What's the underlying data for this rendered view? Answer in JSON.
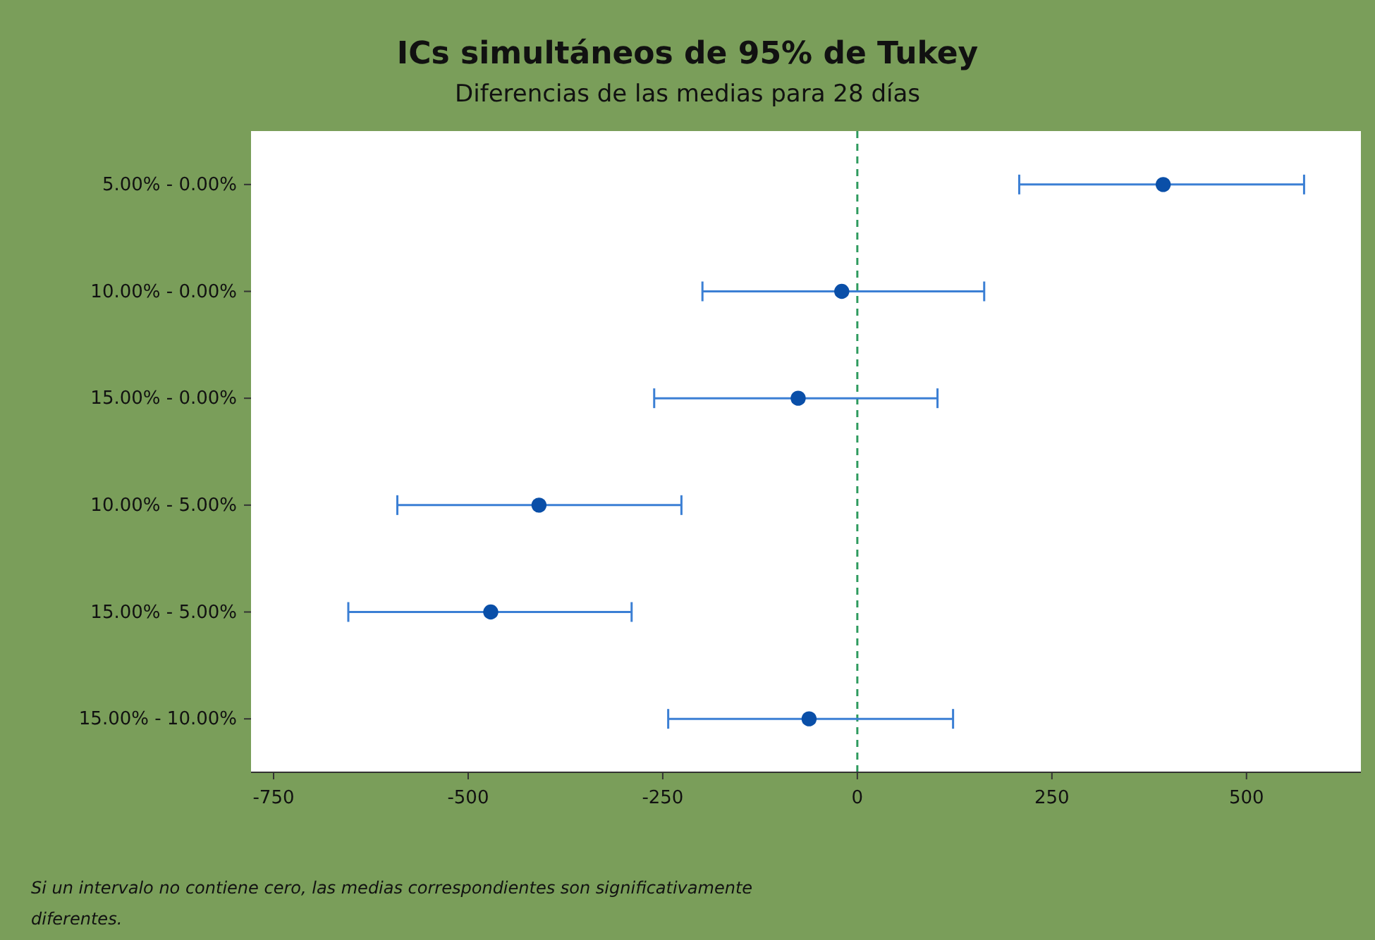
{
  "chart_data": {
    "type": "scatter",
    "orientation": "horizontal",
    "title": "ICs simultáneos de 95% de Tukey",
    "subtitle": "Diferencias de las medias para 28 días",
    "categories": [
      "5.00% - 0.00%",
      "10.00% - 0.00%",
      "15.00% - 0.00%",
      "10.00% - 5.00%",
      "15.00% - 5.00%",
      "15.00% - 10.00%"
    ],
    "series": [
      {
        "color": "#0a4fa8",
        "values": [
          393,
          -20,
          -76,
          -409,
          -471,
          -62
        ],
        "errors": [
          [
            208,
            574
          ],
          [
            -199,
            163
          ],
          [
            -261,
            103
          ],
          [
            -591,
            -226
          ],
          [
            -654,
            -290
          ],
          [
            -243,
            123
          ]
        ]
      }
    ],
    "xlim": [
      -779,
      647
    ],
    "xticks": [
      -750,
      -500,
      -250,
      0,
      250,
      500
    ],
    "ref_lines": [
      {
        "axis": "x",
        "value": 0,
        "color": "#2e9a5e",
        "line_style": "dashed"
      }
    ],
    "marker": "circle",
    "grid": false,
    "annotations": [
      "Si un intervalo no contiene cero, las medias correspondientes son significativamente diferentes."
    ]
  }
}
